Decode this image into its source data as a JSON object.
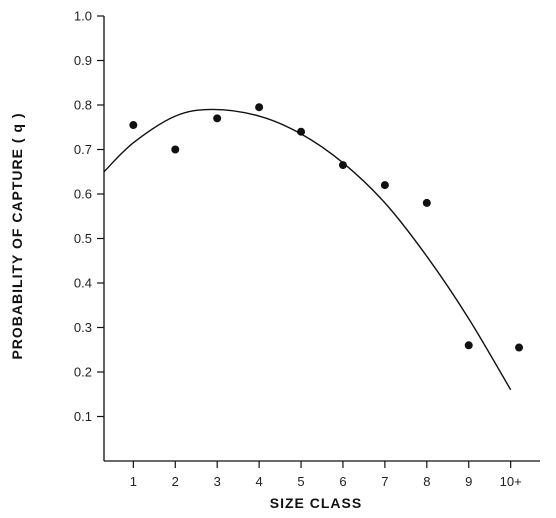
{
  "chart_data": {
    "type": "scatter",
    "xlabel": "SIZE CLASS",
    "ylabel": "PROBABILITY OF CAPTURE  ( q )",
    "x_ticks": [
      "1",
      "2",
      "3",
      "4",
      "5",
      "6",
      "7",
      "8",
      "9",
      "10+"
    ],
    "y_ticks": [
      "0.1",
      "0.2",
      "0.3",
      "0.4",
      "0.5",
      "0.6",
      "0.7",
      "0.8",
      "0.9",
      "1.0"
    ],
    "xlim": [
      0.3,
      10.7
    ],
    "ylim": [
      0.0,
      1.0
    ],
    "grid": false,
    "series": [
      {
        "kind": "points",
        "x": [
          1,
          2,
          3,
          4,
          5,
          6,
          7,
          8,
          9,
          10.2
        ],
        "y": [
          0.755,
          0.7,
          0.77,
          0.795,
          0.74,
          0.665,
          0.62,
          0.58,
          0.26,
          0.255
        ]
      },
      {
        "kind": "fitted-curve",
        "x": [
          0.3,
          1.0,
          2.0,
          2.9,
          4.0,
          5.0,
          6.0,
          7.0,
          8.0,
          9.0,
          10.0
        ],
        "y": [
          0.65,
          0.715,
          0.775,
          0.79,
          0.775,
          0.735,
          0.67,
          0.58,
          0.46,
          0.32,
          0.16
        ]
      }
    ]
  }
}
